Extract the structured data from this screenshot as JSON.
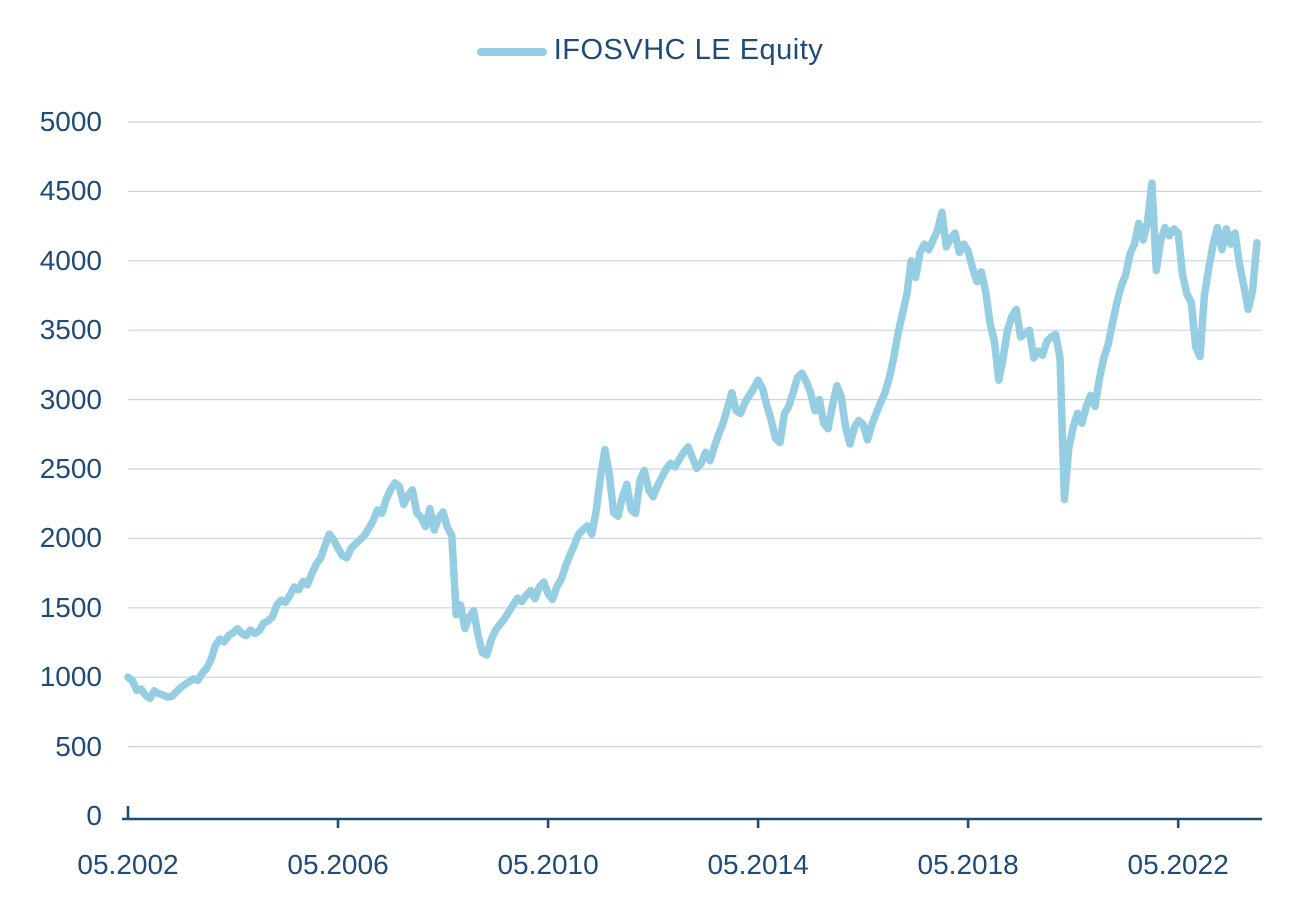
{
  "legend": {
    "label": "IFOSVHC LE Equity"
  },
  "colors": {
    "line": "#95CEE3",
    "text": "#1E4B77",
    "grid": "#C7D5E2",
    "axis": "#1E4B77",
    "background": "#FFFFFF"
  },
  "chart_data": {
    "type": "line",
    "title": "IFOSVHC LE Equity",
    "xlabel": "",
    "ylabel": "",
    "ylim": [
      0,
      5000
    ],
    "y_tick_step": 500,
    "y_tick_labels": [
      "0",
      "500",
      "1000",
      "1500",
      "2000",
      "2500",
      "3000",
      "3500",
      "4000",
      "4500",
      "5000"
    ],
    "x_tick_labels": [
      "05.2002",
      "05.2006",
      "05.2010",
      "05.2014",
      "05.2018",
      "05.2022"
    ],
    "x_tick_values": [
      2002.3333,
      2006.3333,
      2010.3333,
      2014.3333,
      2018.3333,
      2022.3333
    ],
    "xlim": [
      2002.3333,
      2023.93
    ],
    "grid": "horizontal",
    "legend_position": "top-center",
    "series": [
      {
        "name": "IFOSVHC LE Equity",
        "start_year": 2002,
        "start_month": 5,
        "frequency": "monthly",
        "values": [
          1000,
          975,
          905,
          915,
          870,
          848,
          902,
          882,
          872,
          858,
          862,
          893,
          925,
          948,
          968,
          988,
          978,
          1030,
          1065,
          1130,
          1230,
          1275,
          1255,
          1300,
          1320,
          1350,
          1315,
          1300,
          1340,
          1315,
          1335,
          1390,
          1405,
          1435,
          1520,
          1555,
          1540,
          1590,
          1650,
          1630,
          1690,
          1665,
          1745,
          1815,
          1855,
          1945,
          2030,
          1990,
          1930,
          1875,
          1860,
          1930,
          1960,
          1990,
          2020,
          2070,
          2125,
          2205,
          2180,
          2280,
          2350,
          2400,
          2375,
          2245,
          2310,
          2350,
          2185,
          2150,
          2085,
          2215,
          2060,
          2150,
          2190,
          2080,
          2020,
          1450,
          1520,
          1350,
          1430,
          1480,
          1300,
          1175,
          1160,
          1270,
          1340,
          1380,
          1420,
          1470,
          1520,
          1570,
          1545,
          1590,
          1625,
          1565,
          1650,
          1685,
          1600,
          1560,
          1650,
          1705,
          1800,
          1880,
          1950,
          2030,
          2065,
          2090,
          2030,
          2200,
          2450,
          2640,
          2460,
          2185,
          2160,
          2300,
          2390,
          2205,
          2180,
          2420,
          2490,
          2350,
          2300,
          2380,
          2440,
          2500,
          2540,
          2515,
          2570,
          2620,
          2660,
          2580,
          2505,
          2540,
          2620,
          2560,
          2660,
          2750,
          2830,
          2940,
          3050,
          2920,
          2900,
          2980,
          3030,
          3080,
          3140,
          3080,
          2960,
          2850,
          2720,
          2690,
          2900,
          2950,
          3050,
          3160,
          3190,
          3130,
          3050,
          2920,
          3000,
          2830,
          2790,
          2960,
          3100,
          3020,
          2800,
          2680,
          2800,
          2850,
          2820,
          2710,
          2820,
          2900,
          2980,
          3050,
          3160,
          3300,
          3480,
          3620,
          3760,
          4000,
          3880,
          4060,
          4120,
          4080,
          4150,
          4220,
          4350,
          4100,
          4160,
          4200,
          4060,
          4120,
          4070,
          3950,
          3850,
          3920,
          3780,
          3550,
          3420,
          3140,
          3300,
          3500,
          3600,
          3650,
          3450,
          3480,
          3500,
          3300,
          3350,
          3320,
          3420,
          3450,
          3470,
          3300,
          2280,
          2650,
          2800,
          2900,
          2830,
          2950,
          3030,
          2950,
          3150,
          3300,
          3400,
          3550,
          3700,
          3820,
          3900,
          4050,
          4120,
          4270,
          4150,
          4280,
          4560,
          3930,
          4150,
          4240,
          4180,
          4230,
          4200,
          3900,
          3760,
          3700,
          3380,
          3310,
          3750,
          3950,
          4120,
          4240,
          4080,
          4230,
          4120,
          4200,
          3980,
          3820,
          3650,
          3780,
          4130
        ]
      }
    ]
  }
}
